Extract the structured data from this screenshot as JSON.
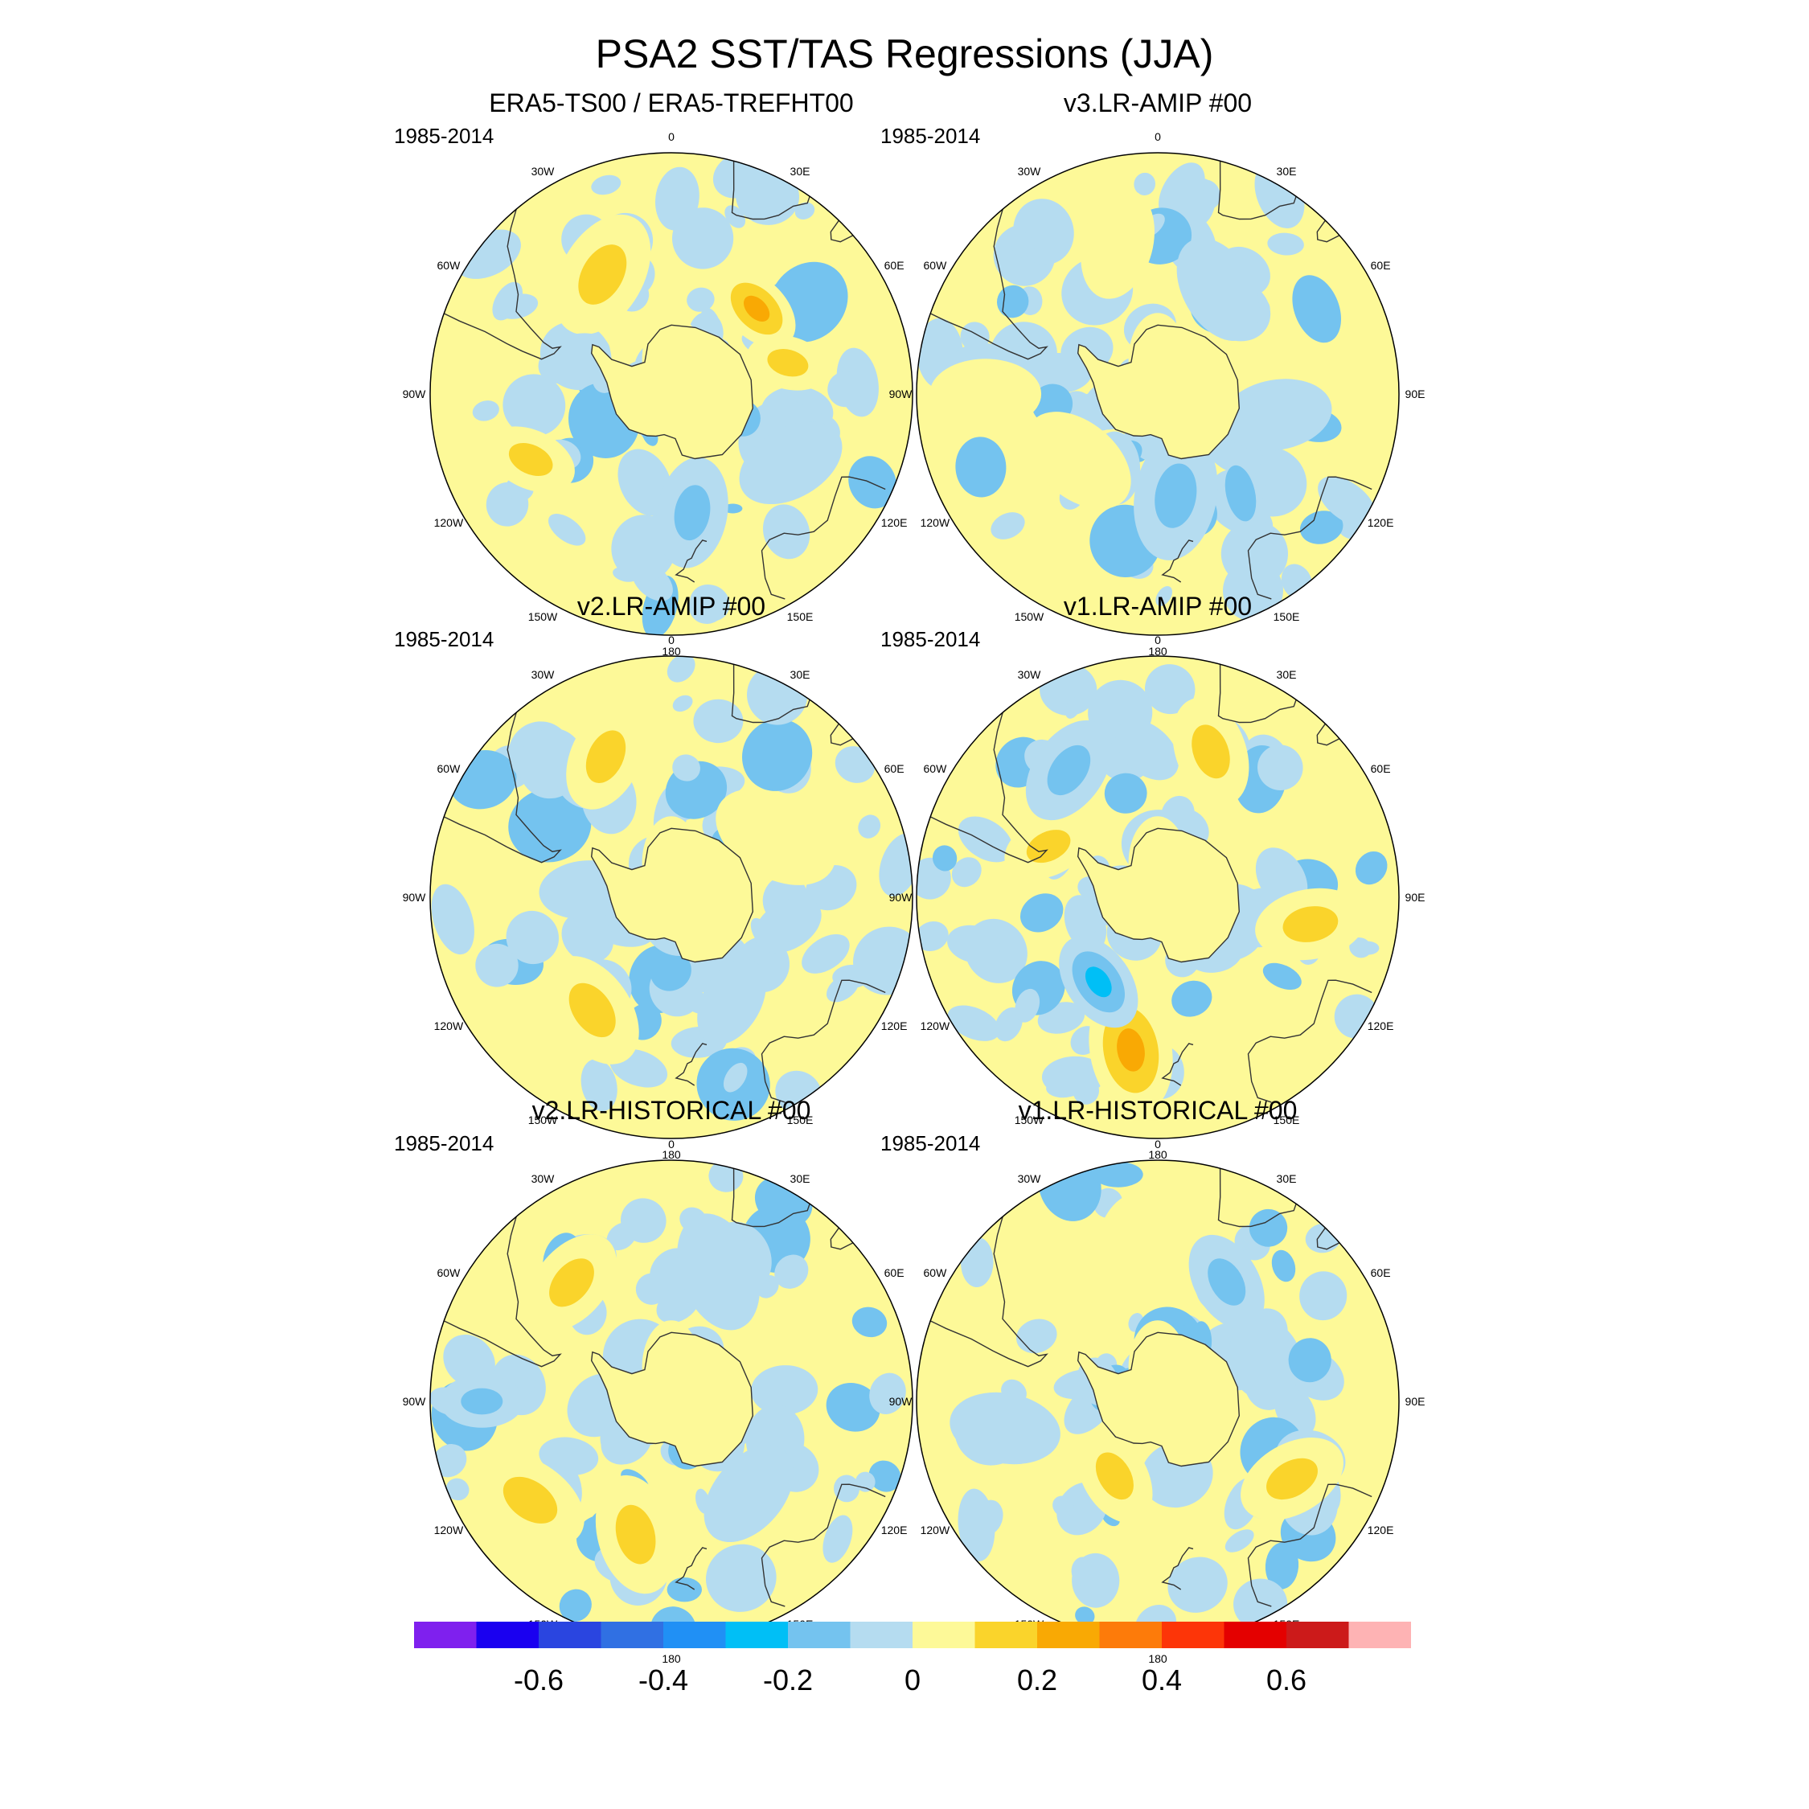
{
  "title": "PSA2 SST/TAS Regressions (JJA)",
  "chart_data": {
    "type": "heatmap",
    "projection": "south-polar-stereographic",
    "title": "PSA2 SST/TAS Regressions (JJA)",
    "panels": [
      {
        "title": "ERA5-TS00 / ERA5-TREFHT00",
        "period": "1985-2014",
        "features": [
          {
            "lon": -30,
            "lat": -50,
            "v": 0.18,
            "s": 14
          },
          {
            "lon": 45,
            "lat": -55,
            "v": 0.28,
            "s": 10
          },
          {
            "lon": 75,
            "lat": -55,
            "v": 0.2,
            "s": 9
          },
          {
            "lon": -115,
            "lat": -45,
            "v": 0.16,
            "s": 10
          },
          {
            "lon": 170,
            "lat": -55,
            "v": -0.16,
            "s": 12
          },
          {
            "lon": -70,
            "lat": -60,
            "v": -0.12,
            "s": 8
          },
          {
            "lon": 120,
            "lat": -50,
            "v": -0.1,
            "s": 12
          },
          {
            "lon": 0,
            "lat": -80,
            "v": 0.05,
            "s": 10
          }
        ]
      },
      {
        "title": "v3.LR-AMIP  #00",
        "period": "1985-2014",
        "features": [
          {
            "lon": -15,
            "lat": -45,
            "v": 0.14,
            "s": 12
          },
          {
            "lon": -130,
            "lat": -60,
            "v": 0.12,
            "s": 13
          },
          {
            "lon": -90,
            "lat": -40,
            "v": 0.05,
            "s": 12
          },
          {
            "lon": 170,
            "lat": -60,
            "v": -0.16,
            "s": 14
          },
          {
            "lon": 30,
            "lat": -55,
            "v": -0.12,
            "s": 12
          },
          {
            "lon": 100,
            "lat": -55,
            "v": -0.1,
            "s": 12
          },
          {
            "lon": 0,
            "lat": -80,
            "v": 0.05,
            "s": 10
          }
        ]
      },
      {
        "title": "v2.LR-AMIP  #00",
        "period": "1985-2014",
        "features": [
          {
            "lon": -25,
            "lat": -45,
            "v": 0.16,
            "s": 12
          },
          {
            "lon": -145,
            "lat": -50,
            "v": 0.18,
            "s": 13
          },
          {
            "lon": 60,
            "lat": -55,
            "v": 0.06,
            "s": 14
          },
          {
            "lon": -85,
            "lat": -65,
            "v": -0.1,
            "s": 10
          },
          {
            "lon": 150,
            "lat": -55,
            "v": -0.08,
            "s": 10
          },
          {
            "lon": 0,
            "lat": -80,
            "v": 0.05,
            "s": 10
          }
        ]
      },
      {
        "title": "v1.LR-AMIP  #00",
        "period": "1985-2014",
        "features": [
          {
            "lon": -170,
            "lat": -45,
            "v": 0.3,
            "s": 14
          },
          {
            "lon": -145,
            "lat": -60,
            "v": -0.3,
            "s": 11
          },
          {
            "lon": -65,
            "lat": -55,
            "v": 0.22,
            "s": 10
          },
          {
            "lon": 20,
            "lat": -45,
            "v": 0.16,
            "s": 12
          },
          {
            "lon": 100,
            "lat": -45,
            "v": 0.18,
            "s": 12
          },
          {
            "lon": -35,
            "lat": -45,
            "v": -0.2,
            "s": 12
          },
          {
            "lon": 0,
            "lat": -80,
            "v": 0.05,
            "s": 10
          }
        ]
      },
      {
        "title": "v2.LR-HISTORICAL  #00",
        "period": "1985-2014",
        "features": [
          {
            "lon": -125,
            "lat": -40,
            "v": 0.22,
            "s": 13
          },
          {
            "lon": -165,
            "lat": -50,
            "v": 0.2,
            "s": 13
          },
          {
            "lon": -40,
            "lat": -45,
            "v": 0.18,
            "s": 12
          },
          {
            "lon": -90,
            "lat": -35,
            "v": -0.22,
            "s": 9
          },
          {
            "lon": 20,
            "lat": -50,
            "v": -0.14,
            "s": 13
          },
          {
            "lon": 140,
            "lat": -55,
            "v": -0.12,
            "s": 12
          },
          {
            "lon": 0,
            "lat": -80,
            "v": 0.05,
            "s": 10
          }
        ]
      },
      {
        "title": "v1.LR-HISTORICAL  #00",
        "period": "1985-2014",
        "features": [
          {
            "lon": -150,
            "lat": -65,
            "v": 0.24,
            "s": 11
          },
          {
            "lon": 120,
            "lat": -45,
            "v": 0.16,
            "s": 12
          },
          {
            "lon": -10,
            "lat": -45,
            "v": 0.12,
            "s": 12
          },
          {
            "lon": 30,
            "lat": -50,
            "v": -0.18,
            "s": 11
          },
          {
            "lon": -100,
            "lat": -45,
            "v": -0.14,
            "s": 12
          },
          {
            "lon": 0,
            "lat": -80,
            "v": 0.05,
            "s": 10
          }
        ]
      }
    ],
    "lon_labels": [
      "0",
      "30E",
      "60E",
      "90E",
      "120E",
      "150E",
      "180",
      "150W",
      "120W",
      "90W",
      "60W",
      "30W"
    ],
    "lon_values": [
      0,
      30,
      60,
      90,
      120,
      150,
      180,
      -150,
      -120,
      -90,
      -60,
      -30
    ],
    "colorbar": {
      "levels": [
        -0.7,
        -0.6,
        -0.5,
        -0.4,
        -0.3,
        -0.2,
        -0.1,
        0,
        0.1,
        0.2,
        0.3,
        0.4,
        0.5,
        0.6,
        0.7
      ],
      "colors": [
        "#7f20ee",
        "#1a00f0",
        "#2a45e0",
        "#3070e3",
        "#2090f5",
        "#00bff6",
        "#74c3ef",
        "#b5dcf0",
        "#fdf998",
        "#fad42b",
        "#f9a904",
        "#fd7b0a",
        "#fd3508",
        "#e40000",
        "#cc1a1a",
        "#feb3b4"
      ],
      "tick_labels": [
        "-0.6",
        "-0.4",
        "-0.2",
        "0",
        "0.2",
        "0.4",
        "0.6"
      ],
      "tick_values": [
        -0.6,
        -0.4,
        -0.2,
        0,
        0.2,
        0.4,
        0.6
      ]
    }
  }
}
